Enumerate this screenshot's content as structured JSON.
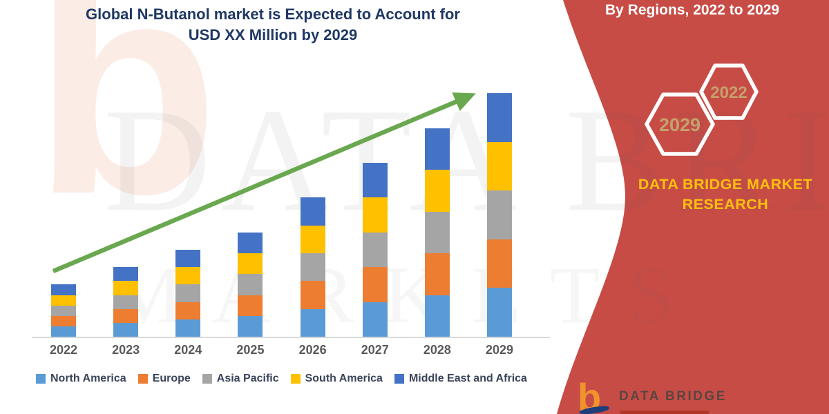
{
  "title": {
    "line1": "Global N-Butanol market is Expected to Account for",
    "line2": "USD XX Million by 2029"
  },
  "right_panel": {
    "heading": "By Regions, 2022 to 2029",
    "hexagons": [
      {
        "label": "2029"
      },
      {
        "label": "2022"
      }
    ],
    "brand_line1": "DATA BRIDGE MARKET",
    "brand_line2": "RESEARCH"
  },
  "watermark": {
    "line1": "DATA BRIDGE",
    "line2": "MARKETS",
    "logo_letter": "b"
  },
  "footer_logo": {
    "letter": "b",
    "name": "DATA BRIDGE"
  },
  "icons": {
    "hexagon_outline": "hexagon-badge",
    "logo_b": "data-bridge-b-logo",
    "trend_arrow": "upward-trend-arrow"
  },
  "colors": {
    "panel_red": "#c84c46",
    "title_navy": "#1f3864",
    "brand_yellow": "#fec10d",
    "hex_text_tan": "#c5a06c",
    "arrow_green": "#6aa84f",
    "axis_label_gray": "#595959",
    "axis_line_gray": "#d9d9d9"
  },
  "chart_data": {
    "type": "bar",
    "stacked": true,
    "title": "Global N-Butanol market is Expected to Account for USD XX Million by 2029",
    "xlabel": "",
    "ylabel": "",
    "value_note": "y-axis unlabeled; values are relative index units estimated from bar heights",
    "ylim": [
      0,
      7.5
    ],
    "grid": false,
    "yaxis_visible": false,
    "legend_position": "bottom",
    "trendline": "straight upward green arrow from 2022 to 2029 bar tops",
    "categories": [
      "2022",
      "2023",
      "2024",
      "2025",
      "2026",
      "2027",
      "2028",
      "2029"
    ],
    "totals": [
      1.5,
      2.0,
      2.5,
      3.0,
      4.0,
      5.0,
      6.0,
      7.0
    ],
    "series": [
      {
        "name": "North America",
        "color": "#5b9bd5",
        "values": [
          0.3,
          0.4,
          0.5,
          0.6,
          0.8,
          1.0,
          1.2,
          1.4
        ]
      },
      {
        "name": "Europe",
        "color": "#ed7d31",
        "values": [
          0.3,
          0.4,
          0.5,
          0.6,
          0.8,
          1.0,
          1.2,
          1.4
        ]
      },
      {
        "name": "Asia Pacific",
        "color": "#a5a5a5",
        "values": [
          0.3,
          0.4,
          0.5,
          0.6,
          0.8,
          1.0,
          1.2,
          1.4
        ]
      },
      {
        "name": "South America",
        "color": "#ffc000",
        "values": [
          0.3,
          0.4,
          0.5,
          0.6,
          0.8,
          1.0,
          1.2,
          1.4
        ]
      },
      {
        "name": "Middle East and Africa",
        "color": "#4472c4",
        "values": [
          0.3,
          0.4,
          0.5,
          0.6,
          0.8,
          1.0,
          1.2,
          1.4
        ]
      }
    ]
  }
}
